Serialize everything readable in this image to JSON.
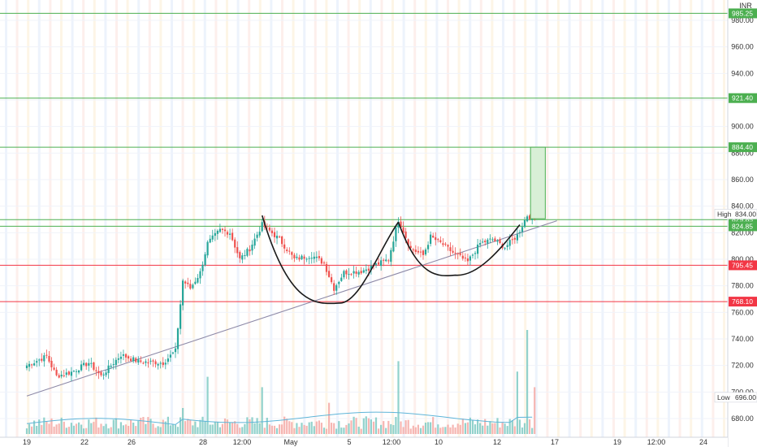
{
  "chart_data": {
    "type": "candlestick",
    "currency": "INR",
    "y_range": [
      672,
      990
    ],
    "y_ticks": [
      "980.00",
      "960.00",
      "940.00",
      "920.00",
      "900.00",
      "880.00",
      "860.00",
      "840.00",
      "820.00",
      "800.00",
      "780.00",
      "760.00",
      "740.00",
      "720.00",
      "700.00",
      "680.00"
    ],
    "x_ticks": [
      "19",
      "22",
      "26",
      "28",
      "12:00",
      "May",
      "5",
      "12:00",
      "10",
      "12",
      "17",
      "19",
      "12:00",
      "24"
    ],
    "high": {
      "label": "High",
      "value": "834.00"
    },
    "low": {
      "label": "Low",
      "value": "696.00"
    },
    "levels": [
      {
        "value": 985.25,
        "label": "985.25",
        "color": "#4caf50"
      },
      {
        "value": 921.4,
        "label": "921.40",
        "color": "#4caf50"
      },
      {
        "value": 884.4,
        "label": "884.40",
        "color": "#4caf50"
      },
      {
        "value": 829.85,
        "label": "829.85",
        "color": "#4caf50"
      },
      {
        "value": 824.85,
        "label": "824.85",
        "color": "#4caf50"
      },
      {
        "value": 795.45,
        "label": "795.45",
        "color": "#f23645"
      },
      {
        "value": 768.1,
        "label": "768.10",
        "color": "#f23645"
      }
    ],
    "trendline": {
      "start": {
        "bar": 0,
        "price": 697
      },
      "end": {
        "bar": 214,
        "price": 829
      }
    },
    "cup_arcs": [
      {
        "from_bar": 95,
        "from_price": 833,
        "low_bar": 126,
        "low_price": 767,
        "to_bar": 150,
        "to_price": 828
      },
      {
        "from_bar": 150,
        "from_price": 828,
        "low_bar": 173,
        "low_price": 788,
        "to_bar": 199,
        "to_price": 826
      }
    ],
    "target_box": {
      "from_bar": 203,
      "to_bar": 207,
      "top": 884.4,
      "bottom": 830.5
    },
    "key_prices": [
      {
        "bar": 0,
        "price": 720
      },
      {
        "bar": 8,
        "price": 727
      },
      {
        "bar": 12,
        "price": 712
      },
      {
        "bar": 18,
        "price": 715
      },
      {
        "bar": 25,
        "price": 722
      },
      {
        "bar": 30,
        "price": 712
      },
      {
        "bar": 38,
        "price": 728
      },
      {
        "bar": 45,
        "price": 723
      },
      {
        "bar": 55,
        "price": 722
      },
      {
        "bar": 60,
        "price": 731
      },
      {
        "bar": 63,
        "price": 784
      },
      {
        "bar": 66,
        "price": 778
      },
      {
        "bar": 70,
        "price": 790
      },
      {
        "bar": 73,
        "price": 812
      },
      {
        "bar": 78,
        "price": 822
      },
      {
        "bar": 82,
        "price": 820
      },
      {
        "bar": 86,
        "price": 800
      },
      {
        "bar": 90,
        "price": 808
      },
      {
        "bar": 95,
        "price": 826
      },
      {
        "bar": 102,
        "price": 815
      },
      {
        "bar": 108,
        "price": 800
      },
      {
        "bar": 115,
        "price": 803
      },
      {
        "bar": 120,
        "price": 797
      },
      {
        "bar": 124,
        "price": 778
      },
      {
        "bar": 128,
        "price": 790
      },
      {
        "bar": 135,
        "price": 791
      },
      {
        "bar": 140,
        "price": 795
      },
      {
        "bar": 146,
        "price": 800
      },
      {
        "bar": 150,
        "price": 830
      },
      {
        "bar": 155,
        "price": 808
      },
      {
        "bar": 160,
        "price": 803
      },
      {
        "bar": 163,
        "price": 817
      },
      {
        "bar": 168,
        "price": 811
      },
      {
        "bar": 172,
        "price": 805
      },
      {
        "bar": 178,
        "price": 798
      },
      {
        "bar": 183,
        "price": 812
      },
      {
        "bar": 188,
        "price": 815
      },
      {
        "bar": 193,
        "price": 809
      },
      {
        "bar": 198,
        "price": 818
      },
      {
        "bar": 202,
        "price": 833
      },
      {
        "bar": 205,
        "price": 830
      }
    ],
    "volume_spikes": [
      {
        "bar": 63,
        "value": 0.25
      },
      {
        "bar": 73,
        "value": 0.55
      },
      {
        "bar": 95,
        "value": 0.45
      },
      {
        "bar": 122,
        "value": 0.3
      },
      {
        "bar": 150,
        "value": 0.7
      },
      {
        "bar": 198,
        "value": 0.6
      },
      {
        "bar": 202,
        "value": 1.0
      },
      {
        "bar": 205,
        "value": 0.45
      }
    ]
  }
}
